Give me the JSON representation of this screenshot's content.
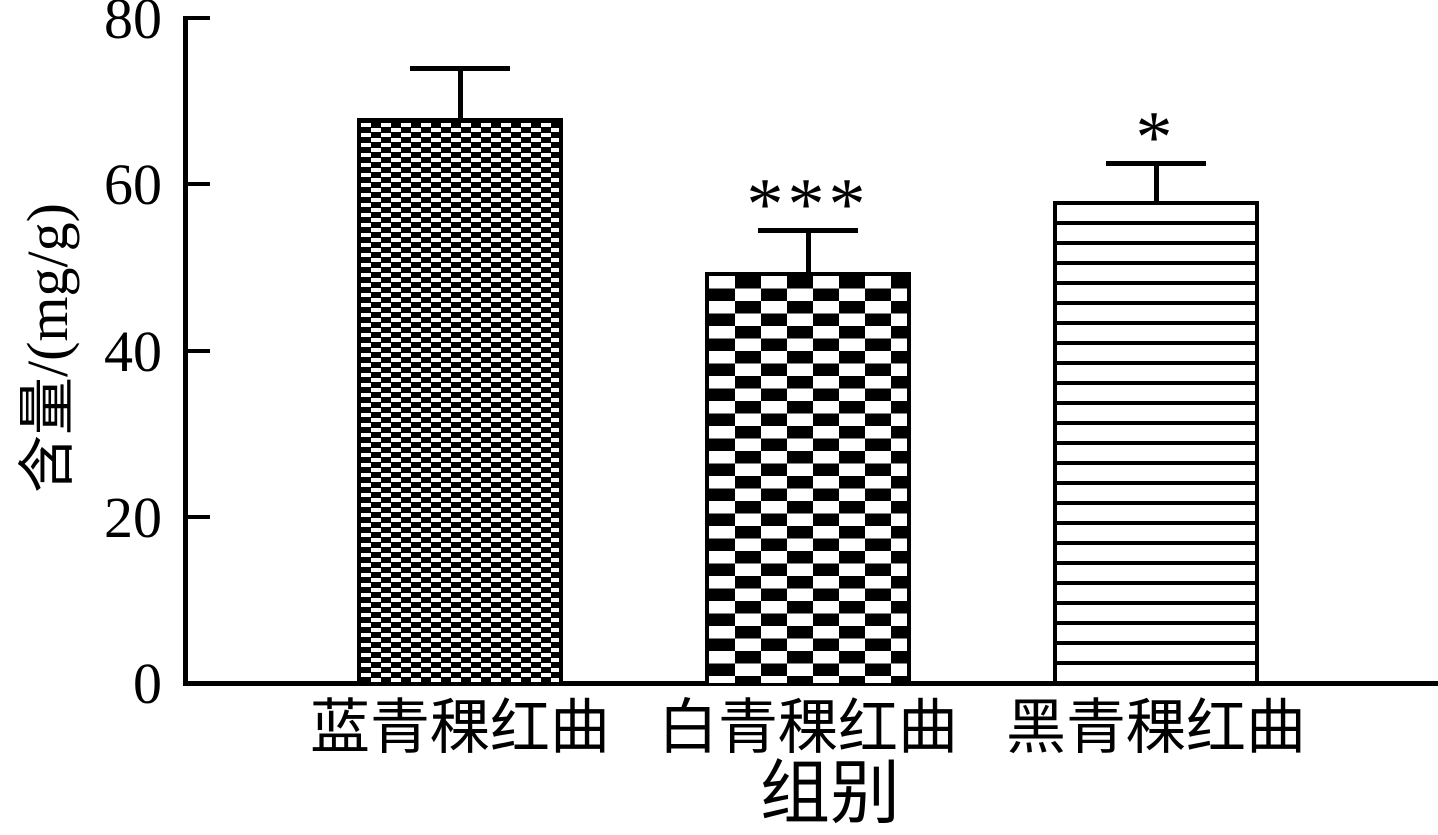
{
  "figure": {
    "background_color": "#ffffff",
    "ink_color": "#000000"
  },
  "chart_data": {
    "type": "bar",
    "title": "",
    "xlabel": "组别",
    "ylabel": "含量/(mg/g)",
    "categories": [
      "蓝青稞红曲",
      "白青稞红曲",
      "黑青稞红曲"
    ],
    "series": [
      {
        "name": "含量",
        "values": [
          68,
          49.5,
          58
        ],
        "error_plus": [
          6,
          5,
          4.5
        ]
      }
    ],
    "annotations": [
      "",
      "***",
      "*"
    ],
    "bar_patterns": [
      "fine-checker",
      "checkerboard",
      "horizontal-stripes"
    ],
    "ylim": [
      0,
      80
    ],
    "yticks": [
      0,
      20,
      40,
      60,
      80
    ],
    "grid": false,
    "legend_position": "none"
  }
}
